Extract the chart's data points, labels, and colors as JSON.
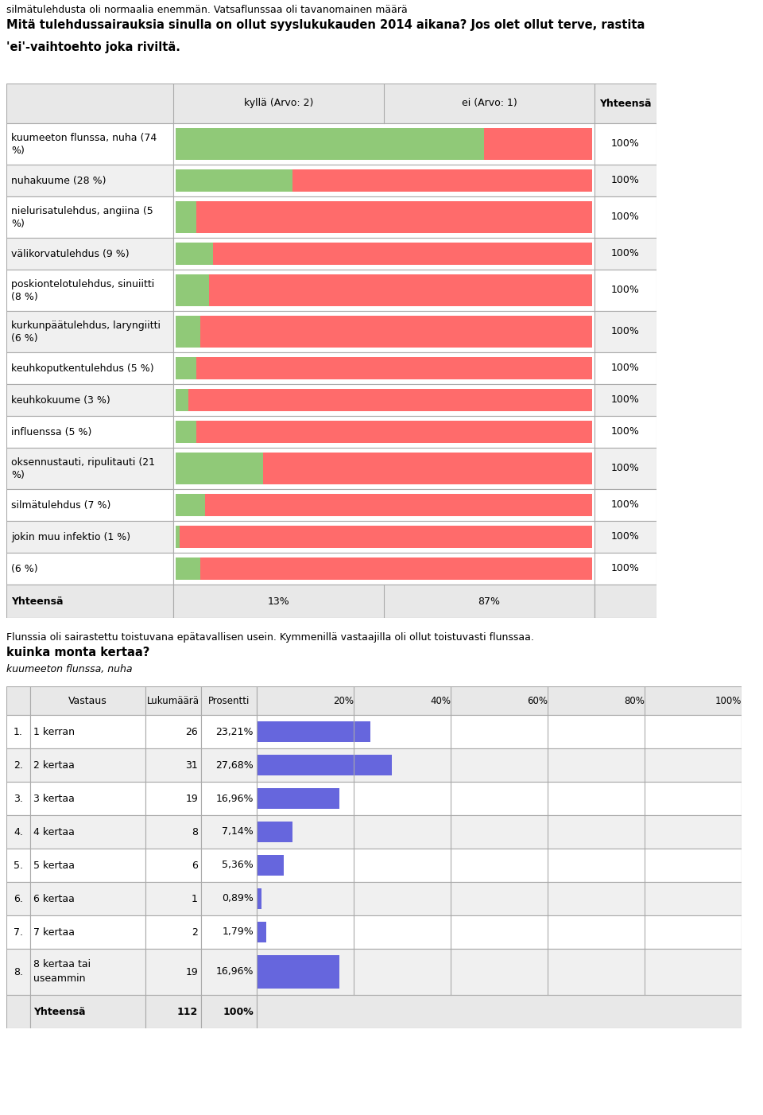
{
  "title_text1": "silmätulehdusta oli normaalia enemmän. Vatsaflunssaa oli tavanomainen määrä",
  "title_text2": "Mitä tulehdussairauksia sinulla on ollut syyslukukauden 2014 aikana? Jos olet ollut terve, rastita",
  "title_text3": "'ei'-vaihtoehto joka riviltä.",
  "table1_rows": [
    {
      "label": "kuumeeton flunssa, nuha (74\n%)",
      "kylla": 74,
      "ei": 26
    },
    {
      "label": "nuhakuume (28 %)",
      "kylla": 28,
      "ei": 72
    },
    {
      "label": "nielurisatulehdus, angiina (5\n%)",
      "kylla": 5,
      "ei": 95
    },
    {
      "label": "välikorvatulehdus (9 %)",
      "kylla": 9,
      "ei": 91
    },
    {
      "label": "poskiontelotulehdus, sinuiitti\n(8 %)",
      "kylla": 8,
      "ei": 92
    },
    {
      "label": "kurkunpäätulehdus, laryngiitti\n(6 %)",
      "kylla": 6,
      "ei": 94
    },
    {
      "label": "keuhkoputkentulehdus (5 %)",
      "kylla": 5,
      "ei": 95
    },
    {
      "label": "keuhkokuume (3 %)",
      "kylla": 3,
      "ei": 97
    },
    {
      "label": "influenssa (5 %)",
      "kylla": 5,
      "ei": 95
    },
    {
      "label": "oksennustauti, ripulitauti (21\n%)",
      "kylla": 21,
      "ei": 79
    },
    {
      "label": "silmätulehdus (7 %)",
      "kylla": 7,
      "ei": 93
    },
    {
      "label": "jokin muu infektio (1 %)",
      "kylla": 1,
      "ei": 99
    },
    {
      "label": "(6 %)",
      "kylla": 6,
      "ei": 94
    }
  ],
  "color_kylla": "#90C978",
  "color_ei": "#FF6B6B",
  "section2_title1": "Flunssia oli sairastettu toistuvana epätavallisen usein. Kymmenillä vastaajilla oli ollut toistuvasti flunssaa.",
  "section2_title2": "kuinka monta kertaa?",
  "section2_subtitle": "kuumeeton flunssa, nuha",
  "table2_rows": [
    {
      "num": "1.",
      "label": "1 kerran",
      "count": 26,
      "pct": "23,21%",
      "pct_val": 23.21
    },
    {
      "num": "2.",
      "label": "2 kertaa",
      "count": 31,
      "pct": "27,68%",
      "pct_val": 27.68
    },
    {
      "num": "3.",
      "label": "3 kertaa",
      "count": 19,
      "pct": "16,96%",
      "pct_val": 16.96
    },
    {
      "num": "4.",
      "label": "4 kertaa",
      "count": 8,
      "pct": "7,14%",
      "pct_val": 7.14
    },
    {
      "num": "5.",
      "label": "5 kertaa",
      "count": 6,
      "pct": "5,36%",
      "pct_val": 5.36
    },
    {
      "num": "6.",
      "label": "6 kertaa",
      "count": 1,
      "pct": "0,89%",
      "pct_val": 0.89
    },
    {
      "num": "7.",
      "label": "7 kertaa",
      "count": 2,
      "pct": "1,79%",
      "pct_val": 1.79
    },
    {
      "num": "8.",
      "label": "8 kertaa tai\nuseammin",
      "count": 19,
      "pct": "16,96%",
      "pct_val": 16.96
    }
  ],
  "bar2_color": "#6666DD",
  "bg_color": "#FFFFFF"
}
